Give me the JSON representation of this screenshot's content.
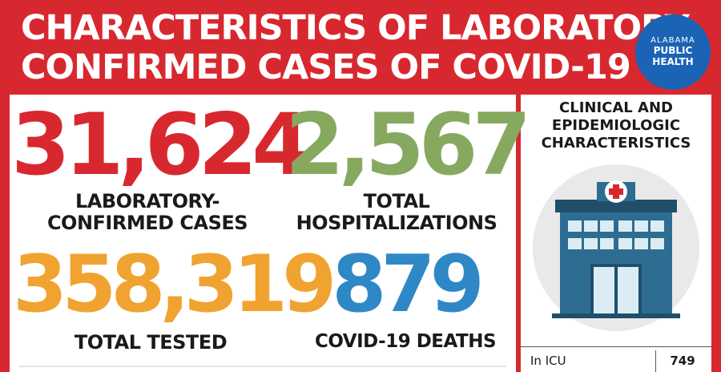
{
  "header": {
    "title_line1": "CHARACTERISTICS OF LABORATORY-",
    "title_line2": "CONFIRMED CASES OF COVID-19"
  },
  "logo": {
    "line1": "ALABAMA",
    "line2": "PUBLIC",
    "line3": "HEALTH",
    "color": "#1b63b5"
  },
  "stats": {
    "confirmed": {
      "value": "31,624",
      "label_line1": "LABORATORY-",
      "label_line2": "CONFIRMED CASES",
      "color": "#d8282f"
    },
    "hospitalizations": {
      "value": "2,567",
      "label_line1": "TOTAL",
      "label_line2": "HOSPITALIZATIONS",
      "color": "#86a95f"
    },
    "tested": {
      "value": "358,319",
      "label": "TOTAL TESTED",
      "color": "#f0a330"
    },
    "deaths": {
      "value": "879",
      "label": "COVID-19 DEATHS",
      "color": "#2e88c6"
    }
  },
  "clinical": {
    "title_line1": "CLINICAL AND",
    "title_line2": "EPIDEMIOLOGIC",
    "title_line3": "CHARACTERISTICS",
    "icon": "hospital-icon",
    "rows": [
      {
        "label": "In ICU",
        "value": "749"
      }
    ]
  }
}
